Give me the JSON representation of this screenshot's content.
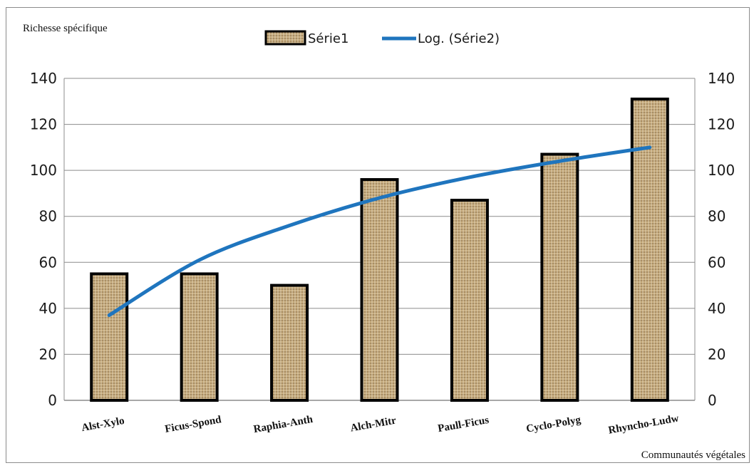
{
  "chart_data": {
    "type": "bar",
    "categories": [
      "Alst-Xylo",
      "Ficus-Spond",
      "Raphia-Anth",
      "Alch-Mitr",
      "Paull-Ficus",
      "Cyclo-Polyg",
      "Rhyncho-Ludw"
    ],
    "series": [
      {
        "name": "Série1",
        "kind": "bar",
        "values": [
          55,
          55,
          50,
          96,
          87,
          107,
          131
        ]
      },
      {
        "name": "Log. (Série2)",
        "kind": "line",
        "values": [
          37,
          61,
          76,
          88,
          97,
          104,
          110
        ]
      }
    ],
    "ylabel": "Richesse spécifique",
    "xlabel": "Communautés végétales",
    "ylim": [
      0,
      140
    ],
    "yticks": [
      "0",
      "20",
      "40",
      "60",
      "80",
      "100",
      "120",
      "140"
    ],
    "secondary_yticks": [
      "0",
      "20",
      "40",
      "60",
      "80",
      "100",
      "120",
      "140"
    ],
    "grid": true,
    "legend_position": "top",
    "colors": {
      "bar_fill": "#c8ad7f",
      "bar_border": "#000000",
      "line": "#1f75be",
      "grid": "#8c8c8c"
    }
  }
}
